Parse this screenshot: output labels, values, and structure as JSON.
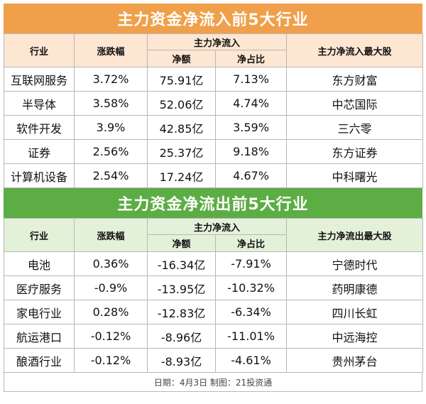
{
  "inflow": {
    "title": "主力资金净流入前5大行业",
    "headers": {
      "industry": "行业",
      "change": "涨跌幅",
      "group": "主力净流入",
      "net": "净额",
      "ratio": "净占比",
      "top_stock": "主力净流入最大股"
    },
    "rows": [
      {
        "industry": "互联网服务",
        "change": "3.72%",
        "net": "75.91亿",
        "ratio": "7.13%",
        "stock": "东方财富"
      },
      {
        "industry": "半导体",
        "change": "3.58%",
        "net": "52.06亿",
        "ratio": "4.74%",
        "stock": "中芯国际"
      },
      {
        "industry": "软件开发",
        "change": "3.9%",
        "net": "42.85亿",
        "ratio": "3.59%",
        "stock": "三六零"
      },
      {
        "industry": "证券",
        "change": "2.56%",
        "net": "25.37亿",
        "ratio": "9.18%",
        "stock": "东方证券"
      },
      {
        "industry": "计算机设备",
        "change": "2.54%",
        "net": "17.24亿",
        "ratio": "4.67%",
        "stock": "中科曙光"
      }
    ]
  },
  "outflow": {
    "title": "主力资金净流出前5大行业",
    "headers": {
      "industry": "行业",
      "change": "涨跌幅",
      "group": "主力净流入",
      "net": "净额",
      "ratio": "净占比",
      "top_stock": "主力净流出最大股"
    },
    "rows": [
      {
        "industry": "电池",
        "change": "0.36%",
        "net": "-16.34亿",
        "ratio": "-7.91%",
        "stock": "宁德时代"
      },
      {
        "industry": "医疗服务",
        "change": "-0.9%",
        "net": "-13.95亿",
        "ratio": "-10.32%",
        "stock": "药明康德"
      },
      {
        "industry": "家电行业",
        "change": "0.28%",
        "net": "-12.83亿",
        "ratio": "-6.34%",
        "stock": "四川长虹"
      },
      {
        "industry": "航运港口",
        "change": "-0.12%",
        "net": "-8.96亿",
        "ratio": "-11.01%",
        "stock": "中远海控"
      },
      {
        "industry": "酿酒行业",
        "change": "-0.12%",
        "net": "-8.93亿",
        "ratio": "-4.61%",
        "stock": "贵州茅台"
      }
    ]
  },
  "footer": "日期：4月3日 制图：21投资通",
  "colors": {
    "inflow_banner": "#f0a04a",
    "outflow_banner": "#5dad45"
  }
}
